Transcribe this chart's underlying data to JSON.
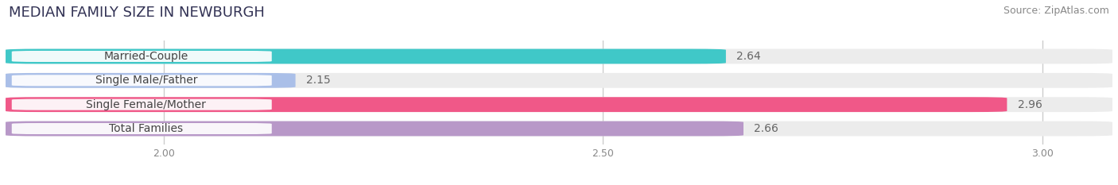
{
  "title": "MEDIAN FAMILY SIZE IN NEWBURGH",
  "source": "Source: ZipAtlas.com",
  "categories": [
    "Married-Couple",
    "Single Male/Father",
    "Single Female/Mother",
    "Total Families"
  ],
  "values": [
    2.64,
    2.15,
    2.96,
    2.66
  ],
  "bar_colors": [
    "#40c8c8",
    "#aabfe8",
    "#f05888",
    "#b898c8"
  ],
  "xlim_min": 1.82,
  "xlim_max": 3.08,
  "xticks": [
    2.0,
    2.5,
    3.0
  ],
  "xtick_labels": [
    "2.00",
    "2.50",
    "3.00"
  ],
  "bar_height": 0.62,
  "label_fontsize": 10,
  "value_fontsize": 10,
  "title_fontsize": 13,
  "source_fontsize": 9,
  "background_color": "#ffffff",
  "bar_bg_color": "#ececec",
  "label_text_color": "#444444",
  "value_text_color": "#666666",
  "title_color": "#333355",
  "grid_color": "#cccccc"
}
